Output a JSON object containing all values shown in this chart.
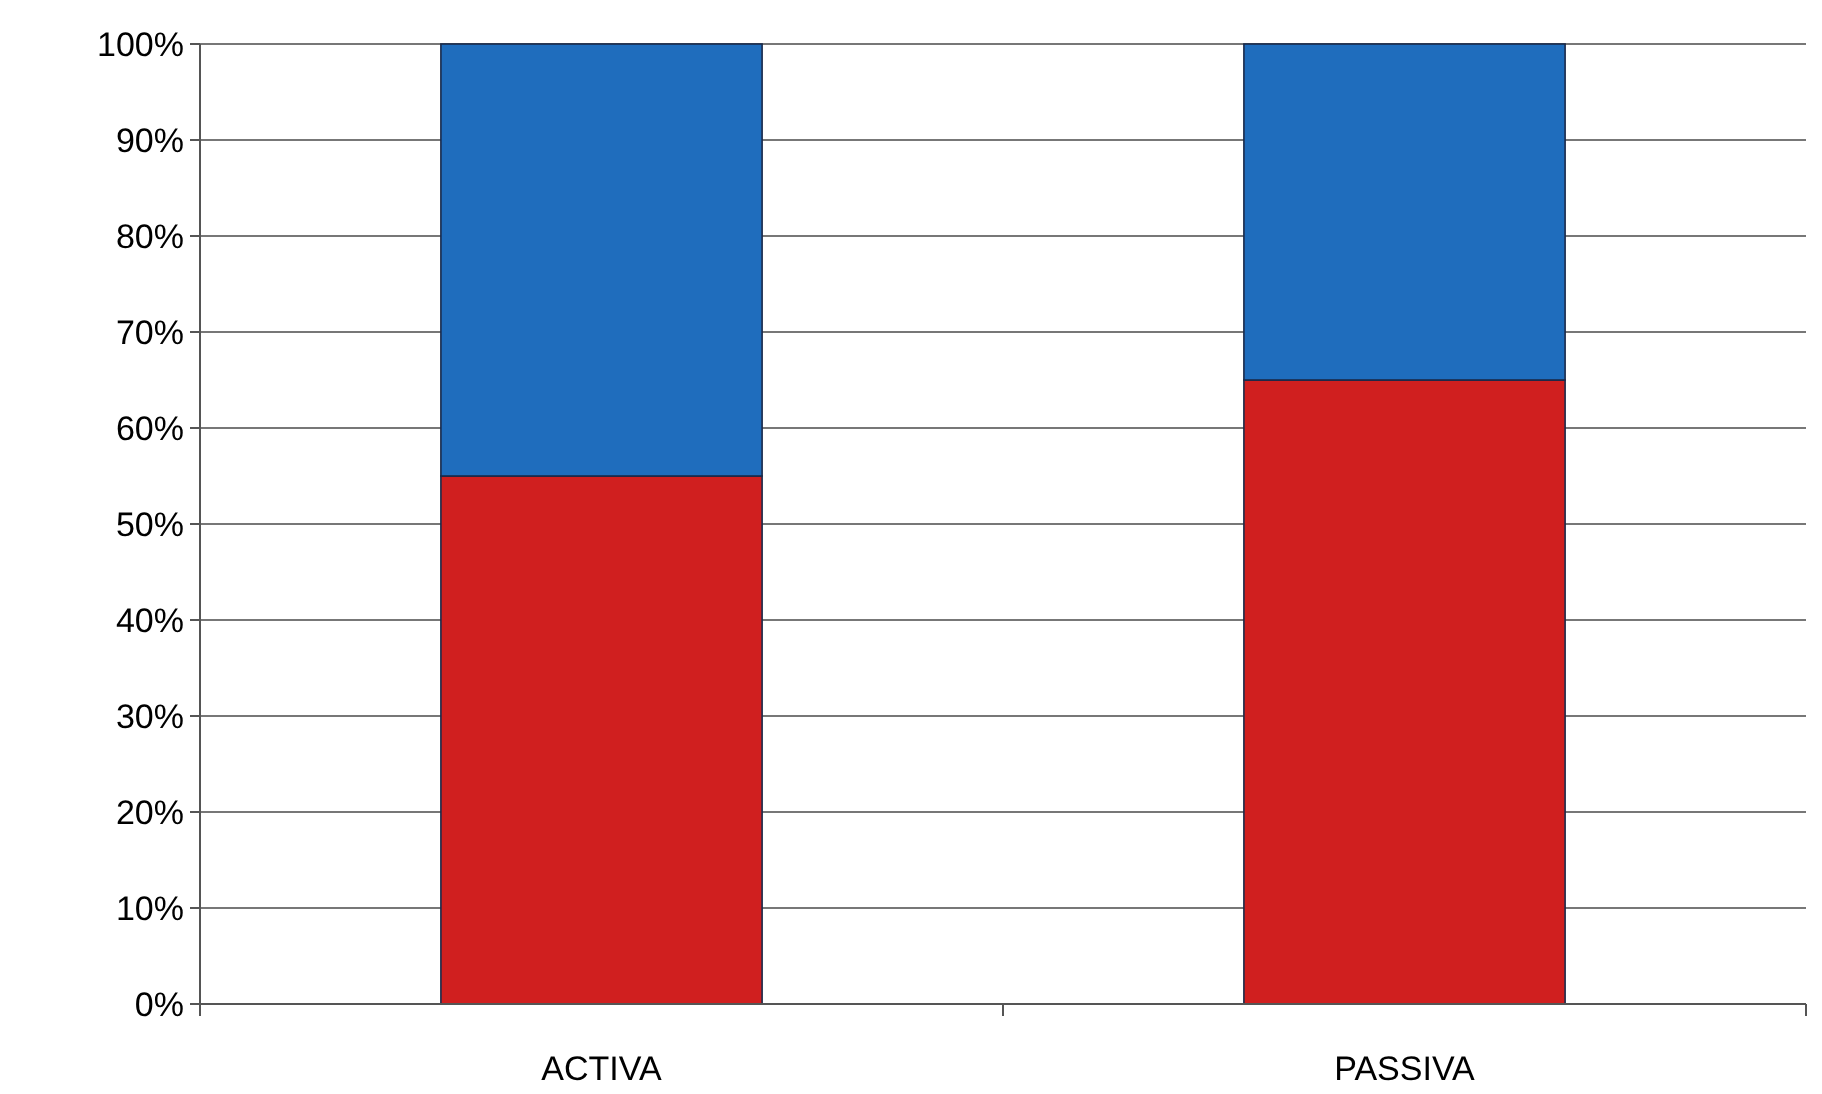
{
  "chart_data": {
    "type": "bar",
    "stacked": true,
    "categories": [
      "ACTIVA",
      "PASSIVA"
    ],
    "series": [
      {
        "color": "#d01f1f",
        "values": [
          55,
          65
        ]
      },
      {
        "color": "#1f6dbd",
        "values": [
          45,
          35
        ]
      }
    ],
    "ylim": [
      0,
      100
    ],
    "yticks": [
      {
        "value": 0,
        "label": "0%"
      },
      {
        "value": 10,
        "label": "10%"
      },
      {
        "value": 20,
        "label": "20%"
      },
      {
        "value": 30,
        "label": "30%"
      },
      {
        "value": 40,
        "label": "40%"
      },
      {
        "value": 50,
        "label": "50%"
      },
      {
        "value": 60,
        "label": "60%"
      },
      {
        "value": 70,
        "label": "70%"
      },
      {
        "value": 80,
        "label": "80%"
      },
      {
        "value": 90,
        "label": "90%"
      },
      {
        "value": 100,
        "label": "100%"
      }
    ],
    "grid": "y"
  }
}
